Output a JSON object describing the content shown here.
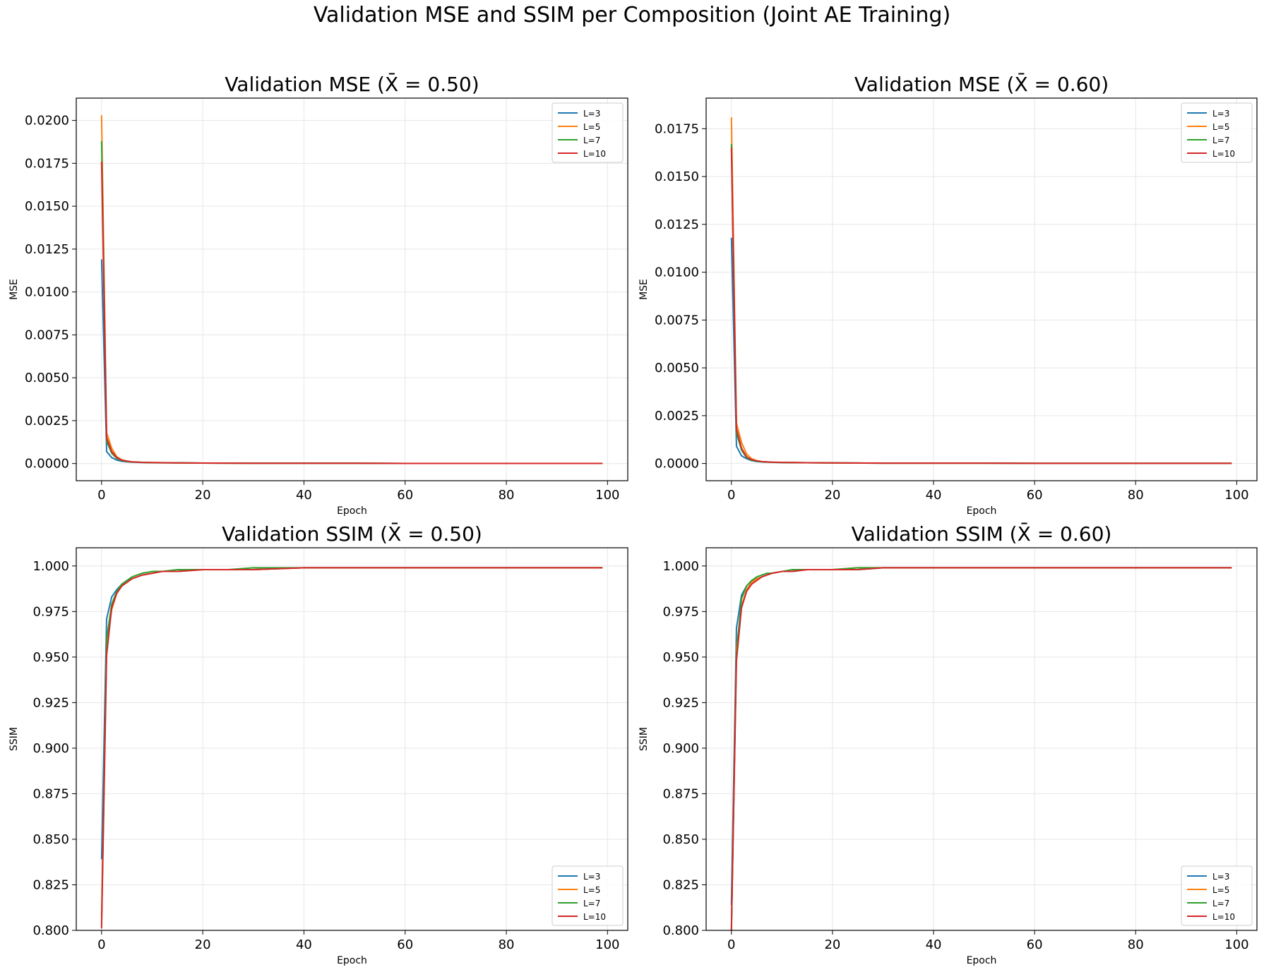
{
  "figure": {
    "title": "Validation MSE and SSIM per Composition (Joint AE Training)"
  },
  "series_colors": {
    "L=3": "#1f77b4",
    "L=5": "#ff7f0e",
    "L=7": "#2ca02c",
    "L=10": "#d62728"
  },
  "chart_data": [
    {
      "type": "line",
      "title": "Validation MSE (X̄ = 0.50)",
      "xlabel": "Epoch",
      "ylabel": "MSE",
      "xlim": [
        -5,
        104
      ],
      "ylim": [
        -0.001,
        0.0213
      ],
      "xticks": [
        0,
        20,
        40,
        60,
        80,
        100
      ],
      "yticks": [
        0.0,
        0.0025,
        0.005,
        0.0075,
        0.01,
        0.0125,
        0.015,
        0.0175,
        0.02
      ],
      "yticklabels": [
        "0.0000",
        "0.0025",
        "0.0050",
        "0.0075",
        "0.0100",
        "0.0125",
        "0.0150",
        "0.0175",
        "0.0200"
      ],
      "xticklabels": [
        "0",
        "20",
        "40",
        "60",
        "80",
        "100"
      ],
      "grid": true,
      "legend": "top-right",
      "series": [
        {
          "name": "L=3",
          "x": [
            0,
            1,
            2,
            3,
            4,
            5,
            6,
            8,
            10,
            15,
            20,
            30,
            40,
            50,
            60,
            70,
            80,
            90,
            99
          ],
          "values": [
            0.0119,
            0.0007,
            0.00035,
            0.0002,
            0.00013,
            0.0001,
            8e-05,
            6e-05,
            5e-05,
            4e-05,
            3e-05,
            2e-05,
            2e-05,
            2e-05,
            1e-05,
            1e-05,
            1e-05,
            1e-05,
            1e-05
          ]
        },
        {
          "name": "L=5",
          "x": [
            0,
            1,
            2,
            3,
            4,
            5,
            6,
            8,
            10,
            15,
            20,
            30,
            40,
            50,
            60,
            70,
            80,
            90,
            99
          ],
          "values": [
            0.0203,
            0.0018,
            0.0009,
            0.0004,
            0.00022,
            0.00015,
            0.0001,
            7e-05,
            6e-05,
            4e-05,
            3e-05,
            2e-05,
            2e-05,
            2e-05,
            1e-05,
            1e-05,
            1e-05,
            1e-05,
            1e-05
          ]
        },
        {
          "name": "L=7",
          "x": [
            0,
            1,
            2,
            3,
            4,
            5,
            6,
            8,
            10,
            15,
            20,
            30,
            40,
            50,
            60,
            70,
            80,
            90,
            99
          ],
          "values": [
            0.0188,
            0.0013,
            0.0006,
            0.0003,
            0.00018,
            0.00012,
            9e-05,
            7e-05,
            5e-05,
            4e-05,
            3e-05,
            2e-05,
            2e-05,
            2e-05,
            1e-05,
            1e-05,
            1e-05,
            1e-05,
            1e-05
          ]
        },
        {
          "name": "L=10",
          "x": [
            0,
            1,
            2,
            3,
            4,
            5,
            6,
            8,
            10,
            15,
            20,
            30,
            40,
            50,
            60,
            70,
            80,
            90,
            99
          ],
          "values": [
            0.0176,
            0.0015,
            0.0007,
            0.00035,
            0.0002,
            0.00014,
            0.0001,
            7e-05,
            6e-05,
            4e-05,
            3e-05,
            2e-05,
            2e-05,
            2e-05,
            1e-05,
            1e-05,
            1e-05,
            1e-05,
            1e-05
          ]
        }
      ]
    },
    {
      "type": "line",
      "title": "Validation MSE (X̄ = 0.60)",
      "xlabel": "Epoch",
      "ylabel": "MSE",
      "xlim": [
        -5,
        104
      ],
      "ylim": [
        -0.0009,
        0.0191
      ],
      "xticks": [
        0,
        20,
        40,
        60,
        80,
        100
      ],
      "yticks": [
        0.0,
        0.0025,
        0.005,
        0.0075,
        0.01,
        0.0125,
        0.015,
        0.0175
      ],
      "yticklabels": [
        "0.0000",
        "0.0025",
        "0.0050",
        "0.0075",
        "0.0100",
        "0.0125",
        "0.0150",
        "0.0175"
      ],
      "xticklabels": [
        "0",
        "20",
        "40",
        "60",
        "80",
        "100"
      ],
      "grid": true,
      "legend": "top-right",
      "series": [
        {
          "name": "L=3",
          "x": [
            0,
            1,
            2,
            3,
            4,
            5,
            6,
            8,
            10,
            15,
            20,
            30,
            40,
            50,
            60,
            70,
            80,
            90,
            99
          ],
          "values": [
            0.0118,
            0.0009,
            0.0004,
            0.00025,
            0.00015,
            0.0001,
            8e-05,
            6e-05,
            5e-05,
            4e-05,
            3e-05,
            2e-05,
            2e-05,
            2e-05,
            1e-05,
            1e-05,
            1e-05,
            1e-05,
            1e-05
          ]
        },
        {
          "name": "L=5",
          "x": [
            0,
            1,
            2,
            3,
            4,
            5,
            6,
            8,
            10,
            15,
            20,
            30,
            40,
            50,
            60,
            70,
            80,
            90,
            99
          ],
          "values": [
            0.0181,
            0.0021,
            0.0011,
            0.0005,
            0.00025,
            0.00015,
            0.0001,
            7e-05,
            6e-05,
            4e-05,
            3e-05,
            2e-05,
            2e-05,
            2e-05,
            1e-05,
            1e-05,
            1e-05,
            1e-05,
            1e-05
          ]
        },
        {
          "name": "L=7",
          "x": [
            0,
            1,
            2,
            3,
            4,
            5,
            6,
            8,
            10,
            15,
            20,
            30,
            40,
            50,
            60,
            70,
            80,
            90,
            99
          ],
          "values": [
            0.0167,
            0.0016,
            0.0007,
            0.0003,
            0.00018,
            0.00012,
            9e-05,
            7e-05,
            5e-05,
            4e-05,
            3e-05,
            2e-05,
            2e-05,
            2e-05,
            1e-05,
            1e-05,
            1e-05,
            1e-05,
            1e-05
          ]
        },
        {
          "name": "L=10",
          "x": [
            0,
            1,
            2,
            3,
            4,
            5,
            6,
            8,
            10,
            15,
            20,
            30,
            40,
            50,
            60,
            70,
            80,
            90,
            99
          ],
          "values": [
            0.0165,
            0.0018,
            0.0008,
            0.00035,
            0.0002,
            0.00014,
            0.0001,
            7e-05,
            6e-05,
            4e-05,
            3e-05,
            2e-05,
            2e-05,
            2e-05,
            1e-05,
            1e-05,
            1e-05,
            1e-05,
            1e-05
          ]
        }
      ]
    },
    {
      "type": "line",
      "title": "Validation SSIM (X̄ = 0.50)",
      "xlabel": "Epoch",
      "ylabel": "SSIM",
      "xlim": [
        -5,
        104
      ],
      "ylim": [
        0.8,
        1.01
      ],
      "xticks": [
        0,
        20,
        40,
        60,
        80,
        100
      ],
      "yticks": [
        0.8,
        0.825,
        0.85,
        0.875,
        0.9,
        0.925,
        0.95,
        0.975,
        1.0
      ],
      "yticklabels": [
        "0.800",
        "0.825",
        "0.850",
        "0.875",
        "0.900",
        "0.925",
        "0.950",
        "0.975",
        "1.000"
      ],
      "xticklabels": [
        "0",
        "20",
        "40",
        "60",
        "80",
        "100"
      ],
      "grid": true,
      "legend": "bottom-right",
      "series": [
        {
          "name": "L=3",
          "x": [
            0,
            1,
            2,
            3,
            4,
            5,
            6,
            7,
            8,
            10,
            12,
            15,
            20,
            25,
            30,
            40,
            50,
            60,
            70,
            75,
            80,
            90,
            99
          ],
          "values": [
            0.839,
            0.971,
            0.983,
            0.987,
            0.99,
            0.992,
            0.993,
            0.994,
            0.995,
            0.996,
            0.997,
            0.997,
            0.998,
            0.998,
            0.998,
            0.999,
            0.999,
            0.999,
            0.999,
            0.999,
            0.999,
            0.999,
            0.999
          ]
        },
        {
          "name": "L=5",
          "x": [
            0,
            1,
            2,
            3,
            4,
            5,
            6,
            7,
            8,
            10,
            12,
            15,
            20,
            25,
            30,
            40,
            50,
            60,
            65,
            70,
            80,
            90,
            99
          ],
          "values": [
            0.807,
            0.956,
            0.976,
            0.985,
            0.989,
            0.991,
            0.993,
            0.994,
            0.995,
            0.996,
            0.997,
            0.997,
            0.998,
            0.998,
            0.998,
            0.999,
            0.999,
            0.999,
            0.999,
            0.999,
            0.999,
            0.999,
            0.999
          ]
        },
        {
          "name": "L=7",
          "x": [
            0,
            1,
            2,
            3,
            4,
            5,
            6,
            7,
            8,
            10,
            12,
            15,
            20,
            25,
            30,
            40,
            50,
            60,
            70,
            80,
            90,
            99
          ],
          "values": [
            0.803,
            0.96,
            0.979,
            0.986,
            0.99,
            0.992,
            0.994,
            0.995,
            0.996,
            0.997,
            0.997,
            0.998,
            0.998,
            0.998,
            0.999,
            0.999,
            0.999,
            0.999,
            0.999,
            0.999,
            0.999,
            0.999
          ]
        },
        {
          "name": "L=10",
          "x": [
            0,
            1,
            2,
            3,
            4,
            5,
            6,
            7,
            8,
            10,
            12,
            15,
            20,
            25,
            30,
            40,
            50,
            60,
            70,
            80,
            90,
            99
          ],
          "values": [
            0.801,
            0.951,
            0.977,
            0.985,
            0.989,
            0.991,
            0.993,
            0.994,
            0.995,
            0.996,
            0.997,
            0.997,
            0.998,
            0.998,
            0.998,
            0.999,
            0.999,
            0.999,
            0.999,
            0.999,
            0.999,
            0.999
          ]
        }
      ]
    },
    {
      "type": "line",
      "title": "Validation SSIM (X̄ = 0.60)",
      "xlabel": "Epoch",
      "ylabel": "SSIM",
      "xlim": [
        -5,
        104
      ],
      "ylim": [
        0.8,
        1.01
      ],
      "xticks": [
        0,
        20,
        40,
        60,
        80,
        100
      ],
      "yticks": [
        0.8,
        0.825,
        0.85,
        0.875,
        0.9,
        0.925,
        0.95,
        0.975,
        1.0
      ],
      "yticklabels": [
        "0.800",
        "0.825",
        "0.850",
        "0.875",
        "0.900",
        "0.925",
        "0.950",
        "0.975",
        "1.000"
      ],
      "xticklabels": [
        "0",
        "20",
        "40",
        "60",
        "80",
        "100"
      ],
      "grid": true,
      "legend": "bottom-right",
      "series": [
        {
          "name": "L=3",
          "x": [
            0,
            1,
            2,
            3,
            4,
            5,
            6,
            7,
            8,
            10,
            12,
            15,
            20,
            25,
            30,
            40,
            50,
            60,
            70,
            75,
            80,
            90,
            99
          ],
          "values": [
            0.814,
            0.966,
            0.984,
            0.989,
            0.992,
            0.993,
            0.994,
            0.995,
            0.996,
            0.997,
            0.997,
            0.998,
            0.998,
            0.998,
            0.999,
            0.999,
            0.999,
            0.999,
            0.999,
            0.999,
            0.999,
            0.999,
            0.999
          ]
        },
        {
          "name": "L=5",
          "x": [
            0,
            1,
            2,
            3,
            4,
            5,
            6,
            7,
            8,
            10,
            12,
            15,
            20,
            25,
            30,
            40,
            50,
            60,
            70,
            80,
            90,
            99
          ],
          "values": [
            0.8,
            0.955,
            0.978,
            0.987,
            0.991,
            0.993,
            0.994,
            0.995,
            0.996,
            0.997,
            0.997,
            0.998,
            0.998,
            0.999,
            0.999,
            0.999,
            0.999,
            0.999,
            0.999,
            0.999,
            0.999,
            0.999
          ]
        },
        {
          "name": "L=7",
          "x": [
            0,
            1,
            2,
            3,
            4,
            5,
            6,
            7,
            8,
            10,
            12,
            15,
            20,
            25,
            30,
            40,
            50,
            60,
            70,
            80,
            90,
            99
          ],
          "values": [
            0.8,
            0.952,
            0.982,
            0.989,
            0.992,
            0.994,
            0.995,
            0.996,
            0.996,
            0.997,
            0.998,
            0.998,
            0.998,
            0.999,
            0.999,
            0.999,
            0.999,
            0.999,
            0.999,
            0.999,
            0.999,
            0.999
          ]
        },
        {
          "name": "L=10",
          "x": [
            0,
            1,
            2,
            3,
            4,
            5,
            6,
            7,
            8,
            10,
            12,
            15,
            20,
            25,
            30,
            40,
            50,
            60,
            70,
            80,
            90,
            99
          ],
          "values": [
            0.8,
            0.948,
            0.977,
            0.986,
            0.99,
            0.992,
            0.994,
            0.995,
            0.996,
            0.997,
            0.997,
            0.998,
            0.998,
            0.998,
            0.999,
            0.999,
            0.999,
            0.999,
            0.999,
            0.999,
            0.999,
            0.999
          ]
        }
      ]
    }
  ]
}
